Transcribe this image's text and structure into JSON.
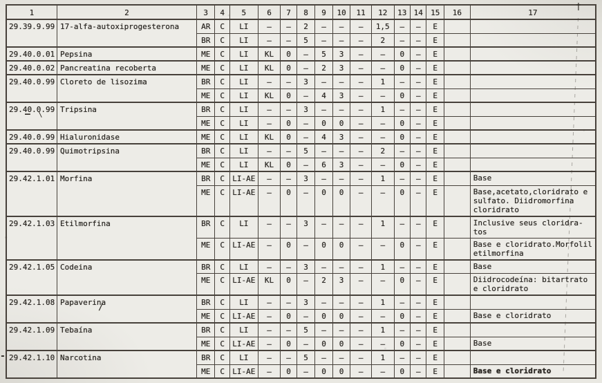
{
  "colors": {
    "paper": "#e9e8e2",
    "ink": "#272420",
    "line": "#46403a"
  },
  "table": {
    "headers": [
      "1",
      "2",
      "3",
      "4",
      "5",
      "6",
      "7",
      "8",
      "9",
      "10",
      "11",
      "12",
      "13",
      "14",
      "15",
      "16",
      "17"
    ],
    "groups": [
      {
        "code": "29.39.9.99",
        "name": "17-alfa-autoxiprogesterona",
        "subs": [
          {
            "cells": [
              "AR",
              "C",
              "LI",
              "–",
              "–",
              "2",
              "–",
              "–",
              "–",
              "1,5",
              "–",
              "–",
              "E",
              "",
              ""
            ]
          },
          {
            "cells": [
              "BR",
              "C",
              "LI",
              "–",
              "–",
              "5",
              "–",
              "–",
              "–",
              "2",
              "–",
              "–",
              "E",
              "",
              ""
            ]
          }
        ]
      },
      {
        "code": "29.40.0.01",
        "name": "Pepsina",
        "subs": [
          {
            "cells": [
              "ME",
              "C",
              "LI",
              "KL",
              "0",
              "–",
              "5",
              "3",
              "–",
              "–",
              "0",
              "–",
              "E",
              "",
              ""
            ]
          }
        ]
      },
      {
        "code": "29.40.0.02",
        "name": "Pancreatina recoberta",
        "subs": [
          {
            "cells": [
              "ME",
              "C",
              "LI",
              "KL",
              "0",
              "–",
              "2",
              "3",
              "–",
              "–",
              "0",
              "–",
              "E",
              "",
              ""
            ]
          }
        ]
      },
      {
        "code": "29.40.0.99",
        "name": "Cloreto de lisozima",
        "subs": [
          {
            "cells": [
              "BR",
              "C",
              "LI",
              "–",
              "–",
              "3",
              "–",
              "–",
              "–",
              "1",
              "–",
              "–",
              "E",
              "",
              ""
            ]
          },
          {
            "cells": [
              "ME",
              "C",
              "LI",
              "KL",
              "0",
              "–",
              "4",
              "3",
              "–",
              "–",
              "0",
              "–",
              "E",
              "",
              ""
            ]
          }
        ]
      },
      {
        "code": "29.40.0.99",
        "name": "Tripsina",
        "subs": [
          {
            "cells": [
              "BR",
              "C",
              "LI",
              "–",
              "–",
              "3",
              "–",
              "–",
              "–",
              "1",
              "–",
              "–",
              "E",
              "",
              ""
            ]
          },
          {
            "cells": [
              "ME",
              "C",
              "LI",
              "–",
              "0",
              "–",
              "0",
              "0",
              "–",
              "–",
              "0",
              "–",
              "E",
              "",
              ""
            ]
          }
        ]
      },
      {
        "code": "29.40.0.99",
        "name": "Hialuronidase",
        "subs": [
          {
            "cells": [
              "ME",
              "C",
              "LI",
              "KL",
              "0",
              "–",
              "4",
              "3",
              "–",
              "–",
              "0",
              "–",
              "E",
              "",
              ""
            ]
          }
        ]
      },
      {
        "code": "29.40.0.99",
        "name": "Quimotripsina",
        "subs": [
          {
            "cells": [
              "BR",
              "C",
              "LI",
              "–",
              "–",
              "5",
              "–",
              "–",
              "–",
              "2",
              "–",
              "–",
              "E",
              "",
              ""
            ]
          },
          {
            "cells": [
              "ME",
              "C",
              "LI",
              "KL",
              "0",
              "–",
              "6",
              "3",
              "–",
              "–",
              "0",
              "–",
              "E",
              "",
              ""
            ]
          }
        ]
      },
      {
        "code": "29.42.1.01",
        "name": "Morfina",
        "subs": [
          {
            "cells": [
              "BR",
              "C",
              "LI-AE",
              "–",
              "–",
              "3",
              "–",
              "–",
              "–",
              "1",
              "–",
              "–",
              "E",
              "",
              "Base"
            ]
          },
          {
            "cells": [
              "ME",
              "C",
              "LI-AE",
              "–",
              "0",
              "–",
              "0",
              "0",
              "–",
              "–",
              "0",
              "–",
              "E",
              "",
              "Base,acetato,cloridrato e sulfato. Diidromorfina cloridrato"
            ]
          }
        ]
      },
      {
        "code": "29.42.1.03",
        "name": "Etilmorfina",
        "subs": [
          {
            "cells": [
              "BR",
              "C",
              "LI",
              "–",
              "–",
              "3",
              "–",
              "–",
              "–",
              "1",
              "–",
              "–",
              "E",
              "",
              "Inclusive seus cloridra-tos"
            ]
          },
          {
            "cells": [
              "ME",
              "C",
              "LI-AE",
              "–",
              "0",
              "–",
              "0",
              "0",
              "–",
              "–",
              "0",
              "–",
              "E",
              "",
              "Base e cloridrato.Morfolil etilmorfina"
            ]
          }
        ]
      },
      {
        "code": "29.42.1.05",
        "name": "Codeina",
        "subs": [
          {
            "cells": [
              "BR",
              "C",
              "LI",
              "–",
              "–",
              "3",
              "–",
              "–",
              "–",
              "1",
              "–",
              "–",
              "E",
              "",
              "Base"
            ]
          },
          {
            "cells": [
              "ME",
              "C",
              "LI-AE",
              "KL",
              "0",
              "–",
              "2",
              "3",
              "–",
              "–",
              "0",
              "–",
              "E",
              "",
              "Diidrocodeína: bitartrato e cloridrato"
            ]
          }
        ]
      },
      {
        "code": "29.42.1.08",
        "name": "Papaverina",
        "subs": [
          {
            "cells": [
              "BR",
              "C",
              "LI",
              "–",
              "–",
              "3",
              "–",
              "–",
              "–",
              "1",
              "–",
              "–",
              "E",
              "",
              ""
            ]
          },
          {
            "cells": [
              "ME",
              "C",
              "LI-AE",
              "–",
              "0",
              "–",
              "0",
              "0",
              "–",
              "–",
              "0",
              "–",
              "E",
              "",
              "Base e cloridrato"
            ]
          }
        ]
      },
      {
        "code": "29.42.1.09",
        "name": "Tebaína",
        "subs": [
          {
            "cells": [
              "BR",
              "C",
              "LI",
              "–",
              "–",
              "5",
              "–",
              "–",
              "–",
              "1",
              "–",
              "–",
              "E",
              "",
              ""
            ]
          },
          {
            "cells": [
              "ME",
              "C",
              "LI-AE",
              "–",
              "0",
              "–",
              "0",
              "0",
              "–",
              "–",
              "0",
              "–",
              "E",
              "",
              "Base"
            ]
          }
        ]
      },
      {
        "code": "29.42.1.10",
        "name": "Narcotina",
        "subs": [
          {
            "cells": [
              "BR",
              "C",
              "LI",
              "–",
              "–",
              "5",
              "–",
              "–",
              "–",
              "1",
              "–",
              "–",
              "E",
              "",
              ""
            ]
          },
          {
            "cells": [
              "ME",
              "C",
              "LI-AE",
              "–",
              "0",
              "–",
              "0",
              "0",
              "–",
              "–",
              "0",
              "–",
              "E",
              "",
              "Base e cloridrato"
            ],
            "bold": true
          }
        ]
      }
    ]
  },
  "marks": {
    "dagger": "†",
    "code_underline": "–",
    "stray_stroke": "\\",
    "papaverina_slash": "/",
    "margin_tick": "-"
  }
}
